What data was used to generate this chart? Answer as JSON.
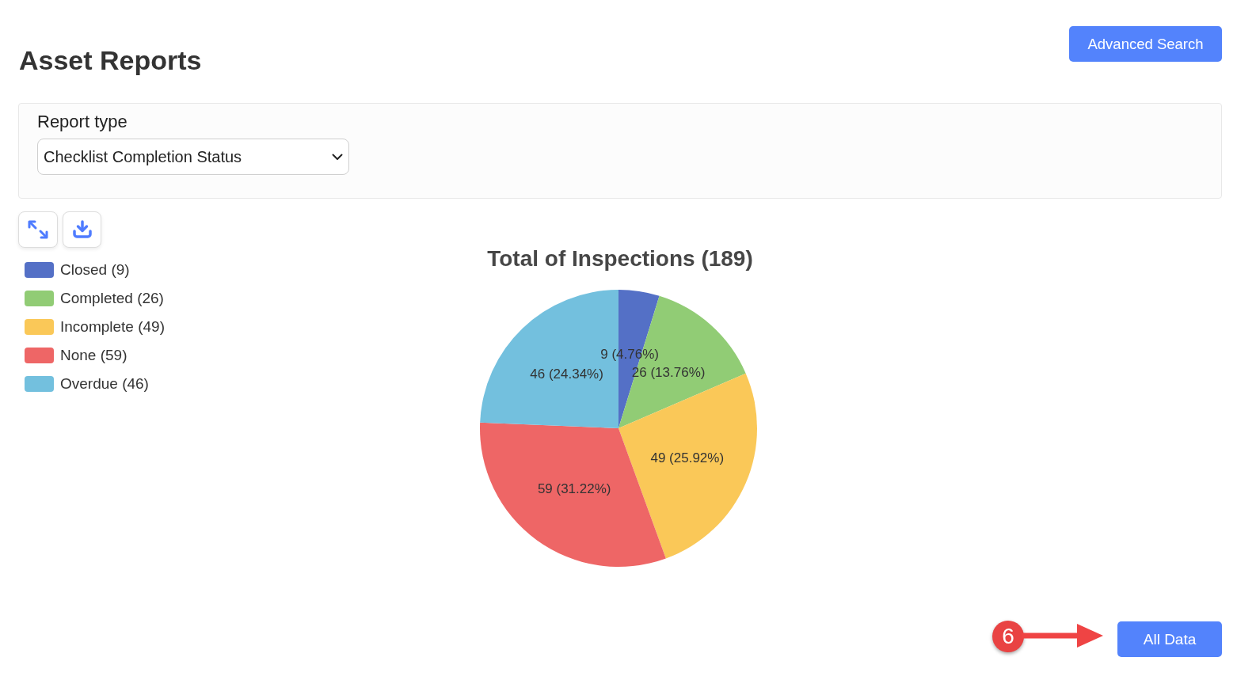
{
  "chart_data": {
    "type": "pie",
    "title": "Total of Inspections (189)",
    "categories": [
      "Closed (9)",
      "Completed (26)",
      "Incomplete (49)",
      "None (59)",
      "Overdue (46)"
    ],
    "values": [
      9,
      26,
      49,
      59,
      46
    ],
    "colors": [
      "#5470c6",
      "#91cc75",
      "#fac858",
      "#ee6666",
      "#73c0de"
    ],
    "value_labels": [
      "9 (4.76%)",
      "26 (13.76%)",
      "49 (25.92%)",
      "59 (31.22%)",
      "46 (24.34%)"
    ],
    "legend": "top left",
    "annotations": [
      "Asset Reports",
      "Report type",
      "Checklist Completion Status",
      "Advanced Search",
      "6",
      "All Data"
    ]
  }
}
